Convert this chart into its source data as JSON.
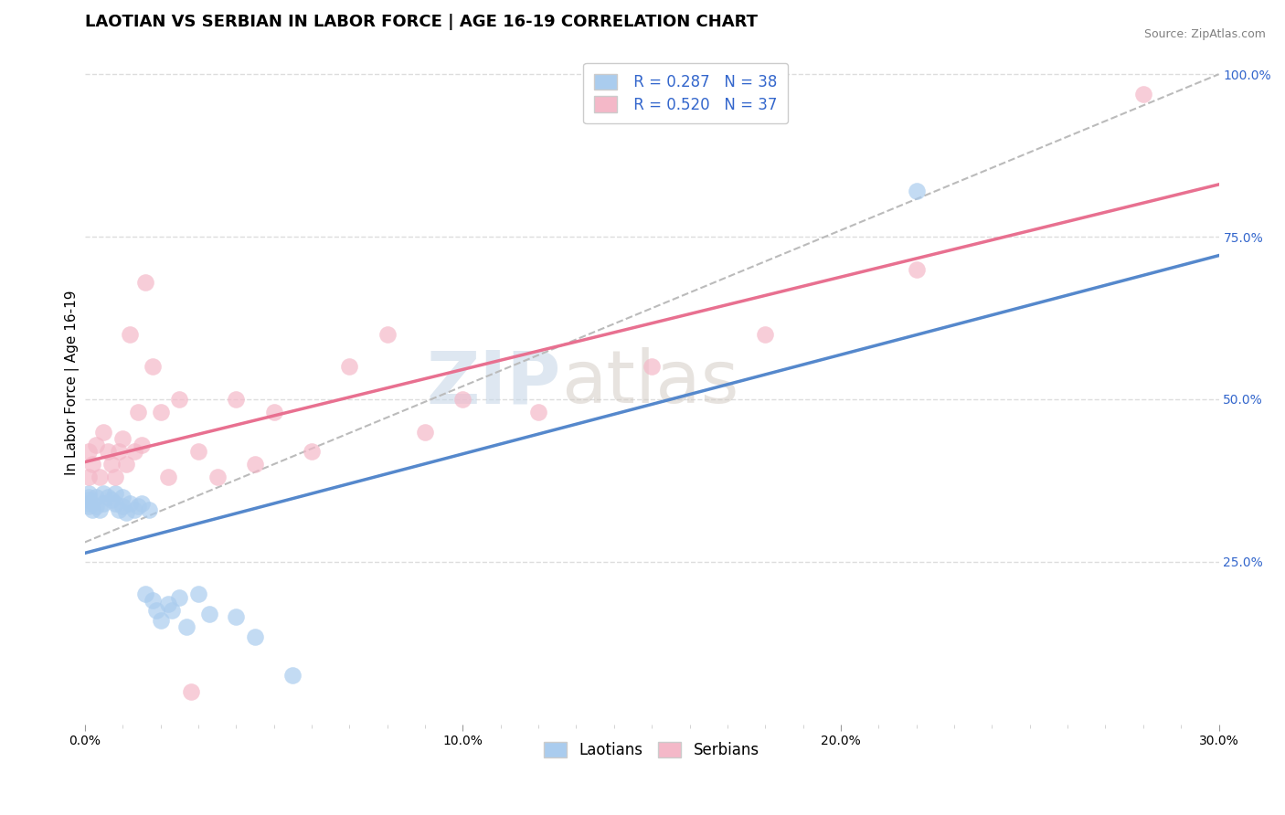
{
  "title": "LAOTIAN VS SERBIAN IN LABOR FORCE | AGE 16-19 CORRELATION CHART",
  "source_text": "Source: ZipAtlas.com",
  "ylabel": "In Labor Force | Age 16-19",
  "xlim": [
    0.0,
    0.3
  ],
  "ylim": [
    0.0,
    1.05
  ],
  "xtick_labels": [
    "0.0%",
    "",
    "",
    "",
    "",
    "",
    "",
    "",
    "",
    "",
    "10.0%",
    "",
    "",
    "",
    "",
    "",
    "",
    "",
    "",
    "",
    "20.0%",
    "",
    "",
    "",
    "",
    "",
    "",
    "",
    "",
    "",
    "30.0%"
  ],
  "xtick_positions": [
    0.0,
    0.01,
    0.02,
    0.03,
    0.04,
    0.05,
    0.06,
    0.07,
    0.08,
    0.09,
    0.1,
    0.11,
    0.12,
    0.13,
    0.14,
    0.15,
    0.16,
    0.17,
    0.18,
    0.19,
    0.2,
    0.21,
    0.22,
    0.23,
    0.24,
    0.25,
    0.26,
    0.27,
    0.28,
    0.29,
    0.3
  ],
  "ytick_right_labels": [
    "25.0%",
    "50.0%",
    "75.0%",
    "100.0%"
  ],
  "ytick_right_positions": [
    0.25,
    0.5,
    0.75,
    1.0
  ],
  "background_color": "#ffffff",
  "grid_color": "#dddddd",
  "laotian_color": "#aaccee",
  "serbian_color": "#f4b8c8",
  "laotian_line_color": "#5588cc",
  "serbian_line_color": "#e87090",
  "ref_line_color": "#bbbbbb",
  "legend_r1": "R = 0.287",
  "legend_n1": "N = 38",
  "legend_r2": "R = 0.520",
  "legend_n2": "N = 37",
  "legend_color": "#3366cc",
  "watermark_zip": "ZIP",
  "watermark_atlas": "atlas",
  "laotian_x": [
    0.001,
    0.001,
    0.001,
    0.001,
    0.001,
    0.002,
    0.003,
    0.003,
    0.004,
    0.005,
    0.005,
    0.006,
    0.007,
    0.008,
    0.008,
    0.009,
    0.01,
    0.01,
    0.011,
    0.012,
    0.013,
    0.014,
    0.015,
    0.016,
    0.017,
    0.018,
    0.019,
    0.02,
    0.022,
    0.023,
    0.025,
    0.027,
    0.03,
    0.033,
    0.04,
    0.045,
    0.055,
    0.22
  ],
  "laotian_y": [
    0.335,
    0.34,
    0.345,
    0.35,
    0.355,
    0.33,
    0.335,
    0.35,
    0.33,
    0.34,
    0.355,
    0.35,
    0.345,
    0.34,
    0.355,
    0.33,
    0.335,
    0.35,
    0.325,
    0.34,
    0.33,
    0.335,
    0.34,
    0.2,
    0.33,
    0.19,
    0.175,
    0.16,
    0.185,
    0.175,
    0.195,
    0.15,
    0.2,
    0.17,
    0.165,
    0.135,
    0.075,
    0.82
  ],
  "serbian_x": [
    0.001,
    0.001,
    0.002,
    0.003,
    0.004,
    0.005,
    0.006,
    0.007,
    0.008,
    0.009,
    0.01,
    0.011,
    0.012,
    0.013,
    0.014,
    0.015,
    0.016,
    0.018,
    0.02,
    0.022,
    0.025,
    0.028,
    0.03,
    0.035,
    0.04,
    0.045,
    0.05,
    0.06,
    0.07,
    0.08,
    0.09,
    0.1,
    0.12,
    0.15,
    0.18,
    0.22,
    0.28
  ],
  "serbian_y": [
    0.38,
    0.42,
    0.4,
    0.43,
    0.38,
    0.45,
    0.42,
    0.4,
    0.38,
    0.42,
    0.44,
    0.4,
    0.6,
    0.42,
    0.48,
    0.43,
    0.68,
    0.55,
    0.48,
    0.38,
    0.5,
    0.05,
    0.42,
    0.38,
    0.5,
    0.4,
    0.48,
    0.42,
    0.55,
    0.6,
    0.45,
    0.5,
    0.48,
    0.55,
    0.6,
    0.7,
    0.97
  ],
  "title_fontsize": 13,
  "axis_label_fontsize": 11,
  "tick_fontsize": 10,
  "legend_fontsize": 12
}
